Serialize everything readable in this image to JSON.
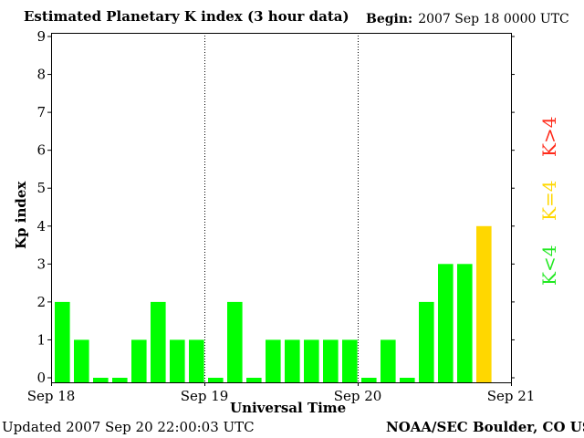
{
  "header": {
    "title": "Estimated Planetary K index (3 hour data)",
    "begin_label": "Begin:",
    "begin_value": "2007 Sep 18 0000 UTC"
  },
  "footer": {
    "updated": "Updated 2007 Sep 20 22:00:03 UTC",
    "credit": "NOAA/SEC Boulder, CO USA"
  },
  "legend": {
    "greater": "K>4",
    "equal": "K=4",
    "less": "K<4"
  },
  "colors": {
    "below_4": "#00ff00",
    "equal_4": "#ffd700",
    "above_4": "#ff2a1a"
  },
  "chart_data": {
    "type": "bar",
    "ylabel": "Kp index",
    "xlabel": "Universal Time",
    "ylim": [
      0,
      9
    ],
    "yticks": [
      0,
      1,
      2,
      3,
      4,
      5,
      6,
      7,
      8,
      9
    ],
    "xtick_labels": [
      "Sep 18",
      "Sep 19",
      "Sep 20",
      "Sep 21"
    ],
    "days": 3,
    "intervals_per_day": 8,
    "values": [
      2,
      1,
      0,
      0,
      1,
      2,
      1,
      1,
      0,
      2,
      0,
      1,
      1,
      1,
      1,
      1,
      0,
      1,
      0,
      2,
      3,
      3,
      4
    ]
  }
}
